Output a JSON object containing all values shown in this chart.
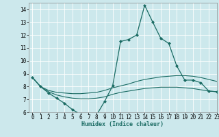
{
  "xlabel": "Humidex (Indice chaleur)",
  "xlim": [
    -0.5,
    23
  ],
  "ylim": [
    6,
    14.5
  ],
  "yticks": [
    6,
    7,
    8,
    9,
    10,
    11,
    12,
    13,
    14
  ],
  "xticks": [
    0,
    1,
    2,
    3,
    4,
    5,
    6,
    7,
    8,
    9,
    10,
    11,
    12,
    13,
    14,
    15,
    16,
    17,
    18,
    19,
    20,
    21,
    22,
    23
  ],
  "background_color": "#cce8ec",
  "grid_color": "#ffffff",
  "line_color": "#1a6b63",
  "lines": [
    {
      "x": [
        0,
        1,
        2,
        3,
        4,
        5,
        6,
        7,
        8,
        9,
        10,
        11,
        12,
        13,
        14,
        15,
        16,
        17,
        18,
        19,
        20,
        21,
        22,
        23
      ],
      "y": [
        8.7,
        8.0,
        7.5,
        7.1,
        6.7,
        6.2,
        5.85,
        5.75,
        5.8,
        6.85,
        8.05,
        11.5,
        11.65,
        12.0,
        14.3,
        13.0,
        11.75,
        11.35,
        9.6,
        8.5,
        8.5,
        8.3,
        7.65,
        7.6
      ],
      "marker": "D",
      "markersize": 2.0,
      "linewidth": 0.9
    },
    {
      "x": [
        0,
        1,
        2,
        3,
        4,
        5,
        6,
        7,
        8,
        9,
        10,
        11,
        12,
        13,
        14,
        15,
        16,
        17,
        18,
        19,
        20,
        21,
        22,
        23
      ],
      "y": [
        8.7,
        8.0,
        7.7,
        7.55,
        7.5,
        7.45,
        7.45,
        7.5,
        7.55,
        7.7,
        7.9,
        8.05,
        8.2,
        8.4,
        8.55,
        8.65,
        8.75,
        8.8,
        8.85,
        8.85,
        8.8,
        8.7,
        8.55,
        8.4
      ],
      "marker": null,
      "markersize": 0,
      "linewidth": 0.8
    },
    {
      "x": [
        0,
        1,
        2,
        3,
        4,
        5,
        6,
        7,
        8,
        9,
        10,
        11,
        12,
        13,
        14,
        15,
        16,
        17,
        18,
        19,
        20,
        21,
        22,
        23
      ],
      "y": [
        8.7,
        8.0,
        7.6,
        7.35,
        7.2,
        7.1,
        7.05,
        7.05,
        7.1,
        7.2,
        7.4,
        7.55,
        7.65,
        7.75,
        7.85,
        7.9,
        7.95,
        7.95,
        7.95,
        7.9,
        7.85,
        7.75,
        7.65,
        7.6
      ],
      "marker": null,
      "markersize": 0,
      "linewidth": 0.8
    }
  ],
  "xlabel_fontsize": 6.0,
  "ylabel_fontsize": 6.0,
  "tick_fontsize": 5.5
}
